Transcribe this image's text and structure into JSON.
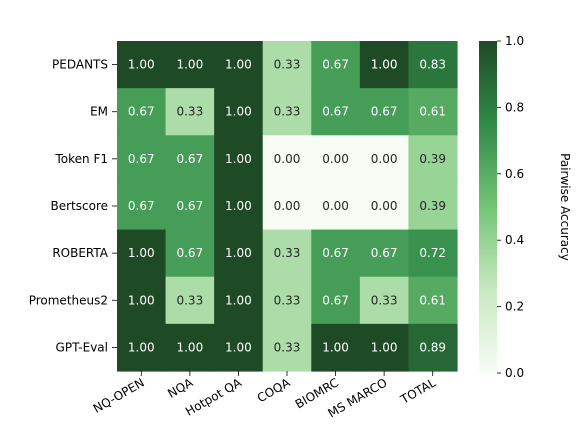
{
  "chart_data": {
    "type": "heatmap",
    "rows": [
      "PEDANTS",
      "EM",
      "Token F1",
      "Bertscore",
      "ROBERTA",
      "Prometheus2",
      "GPT-Eval"
    ],
    "columns": [
      "NQ-OPEN",
      "NQA",
      "Hotpot QA",
      "COQA",
      "BIOMRC",
      "MS MARCO",
      "TOTAL"
    ],
    "values": [
      [
        1.0,
        1.0,
        1.0,
        0.33,
        0.67,
        1.0,
        0.83
      ],
      [
        0.67,
        0.33,
        1.0,
        0.33,
        0.67,
        0.67,
        0.61
      ],
      [
        0.67,
        0.67,
        1.0,
        0.0,
        0.0,
        0.0,
        0.39
      ],
      [
        0.67,
        0.67,
        1.0,
        0.0,
        0.0,
        0.0,
        0.39
      ],
      [
        1.0,
        0.67,
        1.0,
        0.33,
        0.67,
        0.67,
        0.72
      ],
      [
        1.0,
        0.33,
        1.0,
        0.33,
        0.67,
        0.33,
        0.61
      ],
      [
        1.0,
        1.0,
        1.0,
        0.33,
        1.0,
        1.0,
        0.89
      ]
    ],
    "value_format": "2 decimals",
    "colorbar": {
      "label": "Pairwise Accuracy",
      "range": [
        0.0,
        1.0
      ],
      "ticks": [
        "0.0",
        "0.2",
        "0.4",
        "0.6",
        "0.8",
        "1.0"
      ],
      "colormap": "Greens",
      "low_color": "#f7fcf5",
      "high_color": "#1f4a26",
      "position": "right"
    },
    "title": "",
    "xlabel": "",
    "ylabel": ""
  }
}
